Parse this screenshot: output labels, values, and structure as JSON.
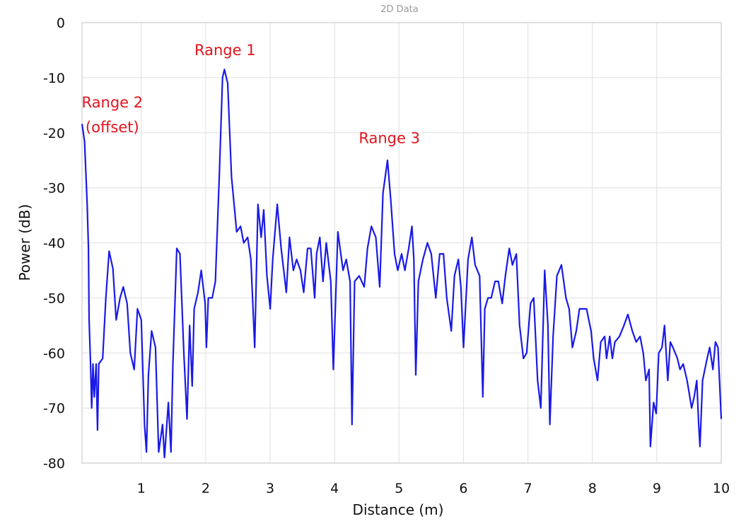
{
  "chart_data": {
    "type": "line",
    "title": "2D Data",
    "xlabel": "Distance (m)",
    "ylabel": "Power (dB)",
    "xlim": [
      0.08,
      10
    ],
    "ylim": [
      -80,
      0
    ],
    "xticks": [
      "1",
      "2",
      "3",
      "4",
      "5",
      "6",
      "7",
      "8",
      "9",
      "10"
    ],
    "yticks": [
      "0",
      "-10",
      "-20",
      "-30",
      "-40",
      "-50",
      "-60",
      "-70",
      "-80"
    ],
    "grid": true,
    "line_color": "#1a1ae6",
    "annotation_color": "#e0141e",
    "annotations": [
      {
        "text": "Range 1",
        "x": 2.3,
        "y": -5
      },
      {
        "text": "Range 2",
        "x": 0.55,
        "y": -14.5
      },
      {
        "text": "(offset)",
        "x": 0.55,
        "y": -19
      },
      {
        "text": "Range 3",
        "x": 4.85,
        "y": -21
      }
    ],
    "series": [
      {
        "x": [
          0.08,
          0.12,
          0.16,
          0.18,
          0.19,
          0.21,
          0.23,
          0.25,
          0.27,
          0.3,
          0.32,
          0.34,
          0.4,
          0.45,
          0.5,
          0.56,
          0.61,
          0.67,
          0.72,
          0.78,
          0.83,
          0.89,
          0.94,
          1.0,
          1.05,
          1.08,
          1.11,
          1.16,
          1.22,
          1.27,
          1.33,
          1.36,
          1.42,
          1.46,
          1.49,
          1.55,
          1.6,
          1.66,
          1.71,
          1.75,
          1.79,
          1.82,
          1.88,
          1.93,
          1.99,
          2.01,
          2.04,
          2.1,
          2.15,
          2.21,
          2.26,
          2.29,
          2.34,
          2.4,
          2.48,
          2.54,
          2.59,
          2.65,
          2.7,
          2.76,
          2.81,
          2.86,
          2.9,
          2.95,
          3.0,
          3.04,
          3.11,
          3.17,
          3.25,
          3.3,
          3.36,
          3.41,
          3.47,
          3.52,
          3.58,
          3.63,
          3.69,
          3.72,
          3.77,
          3.82,
          3.87,
          3.94,
          3.98,
          4.05,
          4.13,
          4.18,
          4.24,
          4.27,
          4.31,
          4.38,
          4.46,
          4.51,
          4.57,
          4.64,
          4.7,
          4.75,
          4.82,
          4.87,
          4.93,
          4.98,
          5.04,
          5.09,
          5.15,
          5.2,
          5.23,
          5.26,
          5.3,
          5.37,
          5.44,
          5.5,
          5.57,
          5.63,
          5.69,
          5.74,
          5.81,
          5.86,
          5.92,
          5.96,
          6.0,
          6.07,
          6.13,
          6.18,
          6.25,
          6.3,
          6.33,
          6.38,
          6.43,
          6.49,
          6.54,
          6.6,
          6.65,
          6.71,
          6.76,
          6.82,
          6.87,
          6.93,
          6.98,
          7.04,
          7.09,
          7.15,
          7.2,
          7.26,
          7.31,
          7.34,
          7.39,
          7.45,
          7.52,
          7.59,
          7.64,
          7.69,
          7.75,
          7.8,
          7.87,
          7.91,
          7.98,
          8.02,
          8.08,
          8.13,
          8.19,
          8.22,
          8.27,
          8.31,
          8.35,
          8.42,
          8.49,
          8.55,
          8.62,
          8.68,
          8.74,
          8.79,
          8.83,
          8.88,
          8.9,
          8.95,
          8.99,
          9.03,
          9.08,
          9.12,
          9.17,
          9.21,
          9.25,
          9.32,
          9.36,
          9.41,
          9.47,
          9.54,
          9.58,
          9.62,
          9.65,
          9.67,
          9.71,
          9.78,
          9.82,
          9.87,
          9.91,
          9.95,
          10.0
        ],
        "y": [
          -18.4,
          -21.6,
          -33,
          -41,
          -54,
          -61,
          -70,
          -62,
          -68,
          -62,
          -74,
          -62,
          -61,
          -50,
          -41.5,
          -44.7,
          -54,
          -50,
          -48,
          -51,
          -60,
          -63,
          -52,
          -54,
          -73,
          -78,
          -64,
          -56,
          -59,
          -78,
          -73,
          -79,
          -69,
          -78,
          -62,
          -41,
          -42,
          -60,
          -72,
          -55,
          -66,
          -52,
          -49,
          -45,
          -51,
          -59,
          -50,
          -50,
          -47,
          -28,
          -10,
          -8.5,
          -11,
          -28,
          -38,
          -37,
          -40,
          -39,
          -43,
          -59,
          -33,
          -39,
          -34,
          -46,
          -52,
          -43,
          -33,
          -41,
          -49,
          -39,
          -45,
          -43,
          -45,
          -49,
          -41,
          -41,
          -50,
          -42,
          -39,
          -47,
          -40,
          -47,
          -63,
          -38,
          -45,
          -43,
          -47,
          -73,
          -47,
          -46,
          -48,
          -41,
          -37,
          -39,
          -48,
          -31,
          -25,
          -32,
          -42,
          -45,
          -42,
          -45,
          -41,
          -37,
          -43,
          -64,
          -47,
          -43,
          -40,
          -42,
          -50,
          -42,
          -42,
          -50,
          -56,
          -46,
          -43,
          -48,
          -59,
          -43,
          -39,
          -44,
          -46,
          -68,
          -52,
          -50,
          -50,
          -47,
          -47,
          -51,
          -46,
          -41,
          -44,
          -42,
          -55,
          -61,
          -60,
          -51,
          -50,
          -65,
          -70,
          -45,
          -55,
          -73,
          -57,
          -46,
          -44,
          -50,
          -52,
          -59,
          -56,
          -52,
          -52,
          -52,
          -56,
          -61,
          -65,
          -58,
          -57,
          -61,
          -57,
          -61,
          -58,
          -57,
          -55,
          -53,
          -56,
          -58,
          -57,
          -60,
          -65,
          -63,
          -77,
          -69,
          -71,
          -60,
          -59,
          -55,
          -65,
          -58,
          -59,
          -61,
          -63,
          -62,
          -65,
          -70,
          -68,
          -65,
          -73,
          -77,
          -65,
          -61,
          -59,
          -63,
          -58,
          -59,
          -72
        ]
      }
    ]
  }
}
